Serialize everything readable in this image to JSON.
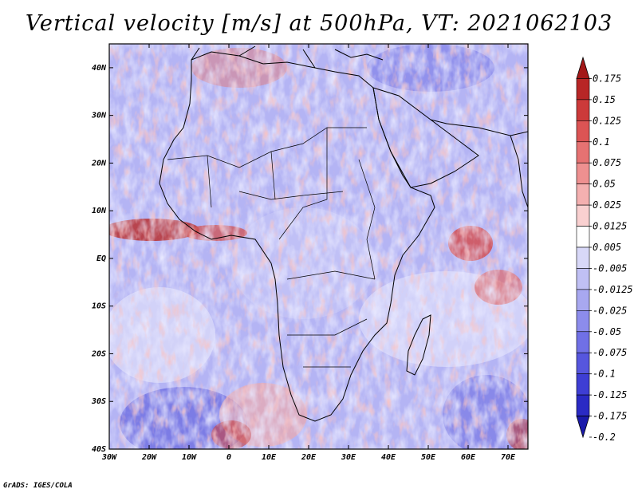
{
  "title": "Vertical velocity [m/s] at 500hPa, VT: 2021062103",
  "map": {
    "lon_range": [
      -30,
      75
    ],
    "lat_range": [
      -40,
      45
    ],
    "lat_ticks": [
      "40N",
      "30N",
      "20N",
      "10N",
      "EQ",
      "10S",
      "20S",
      "30S",
      "40S"
    ],
    "lon_ticks": [
      "30W",
      "20W",
      "10W",
      "0",
      "10E",
      "20E",
      "30E",
      "40E",
      "50E",
      "60E",
      "70E"
    ]
  },
  "colorbar": {
    "levels": [
      "0.175",
      "0.15",
      "0.125",
      "0.1",
      "0.075",
      "0.05",
      "0.025",
      "0.0125",
      "0.005",
      "-0.005",
      "-0.0125",
      "-0.025",
      "-0.05",
      "-0.075",
      "-0.1",
      "-0.125",
      "-0.175",
      "-0.2"
    ],
    "colors": [
      "#a31818",
      "#b82626",
      "#cc3a3a",
      "#dc5454",
      "#e67272",
      "#ee9090",
      "#f4b0b0",
      "#f9d0d0",
      "#ffffff",
      "#d8d8f8",
      "#c0c0f4",
      "#a8a8f0",
      "#8c8cec",
      "#7070e6",
      "#5656de",
      "#3e3ed4",
      "#2a2ac4",
      "#1a1aaa"
    ]
  },
  "credit": "GrADS: IGES/COLA"
}
